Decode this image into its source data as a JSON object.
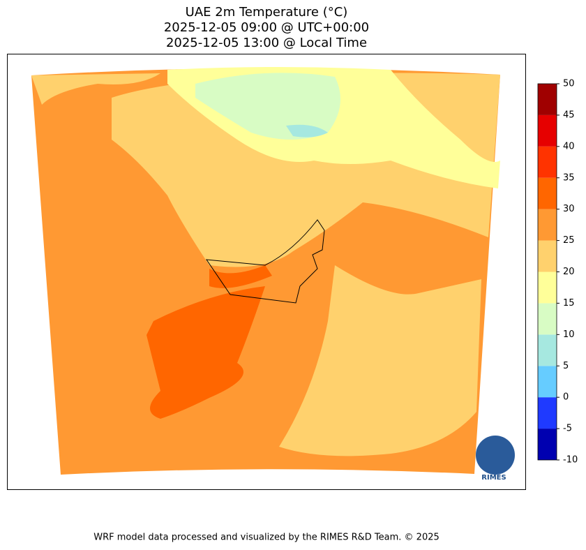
{
  "title_lines": [
    "UAE 2m Temperature (°C)",
    "2025-12-05 09:00 @ UTC+00:00",
    "2025-12-05 13:00 @ Local Time"
  ],
  "colorbar": {
    "clim": [
      -10,
      50
    ],
    "ticks": [
      -10,
      -5,
      0,
      5,
      10,
      15,
      20,
      25,
      30,
      35,
      40,
      45,
      50
    ],
    "colors": [
      "#0000b0",
      "#1f3aff",
      "#66ccff",
      "#a6e8e0",
      "#d8fcc4",
      "#ffff99",
      "#ffd16d",
      "#ff9933",
      "#ff6600",
      "#ff3300",
      "#e60000",
      "#a00000"
    ]
  },
  "logo_text": "RIMES",
  "footer": "WRF model data processed and visualized by the RIMES R&D Team. © 2025"
}
